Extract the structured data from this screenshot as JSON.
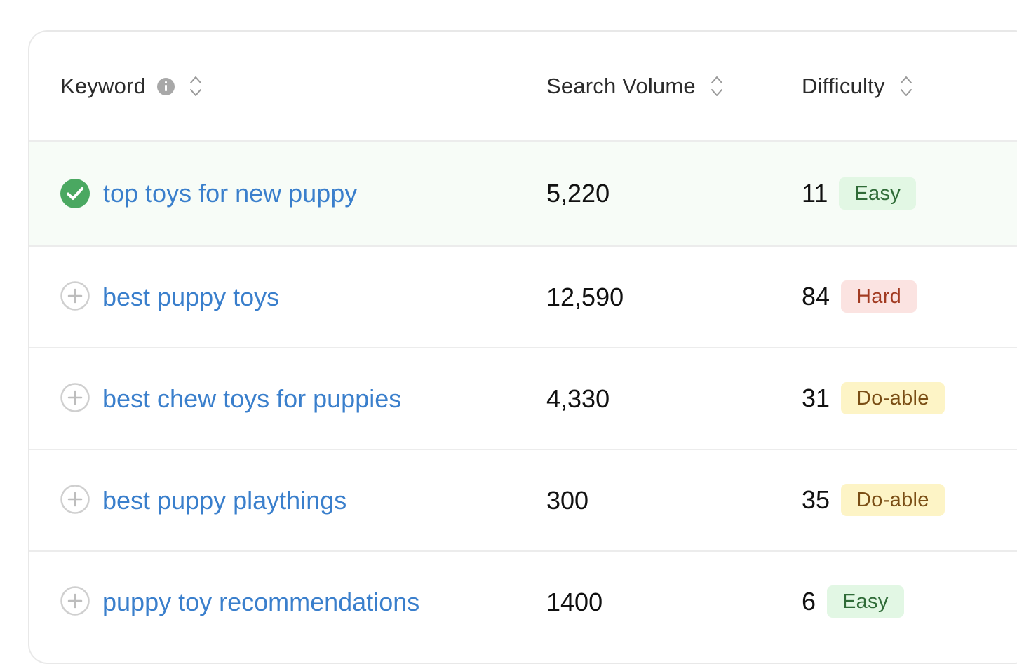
{
  "table": {
    "headers": {
      "keyword": "Keyword",
      "search_volume": "Search Volume",
      "difficulty": "Difficulty"
    },
    "rows": [
      {
        "keyword": "top toys for new puppy",
        "volume": "5,220",
        "difficulty": "11",
        "level": "Easy",
        "selected": true
      },
      {
        "keyword": "best puppy toys",
        "volume": "12,590",
        "difficulty": "84",
        "level": "Hard",
        "selected": false
      },
      {
        "keyword": "best chew toys for puppies",
        "volume": "4,330",
        "difficulty": "31",
        "level": "Do-able",
        "selected": false
      },
      {
        "keyword": "best puppy playthings",
        "volume": "300",
        "difficulty": "35",
        "level": "Do-able",
        "selected": false
      },
      {
        "keyword": "puppy toy recommendations",
        "volume": "1400",
        "difficulty": "6",
        "level": "Easy",
        "selected": false
      }
    ]
  },
  "icons": {
    "info": "info-icon",
    "sort": "sort-icon",
    "selected": "check-circle-icon",
    "add": "plus-circle-icon"
  },
  "colors": {
    "link": "#3a7fcc",
    "check": "#4aa861",
    "easy_bg": "#e2f7e4",
    "hard_bg": "#fbe3e1",
    "doable_bg": "#fdf4c6",
    "selected_row_bg": "#f7fcf7"
  }
}
